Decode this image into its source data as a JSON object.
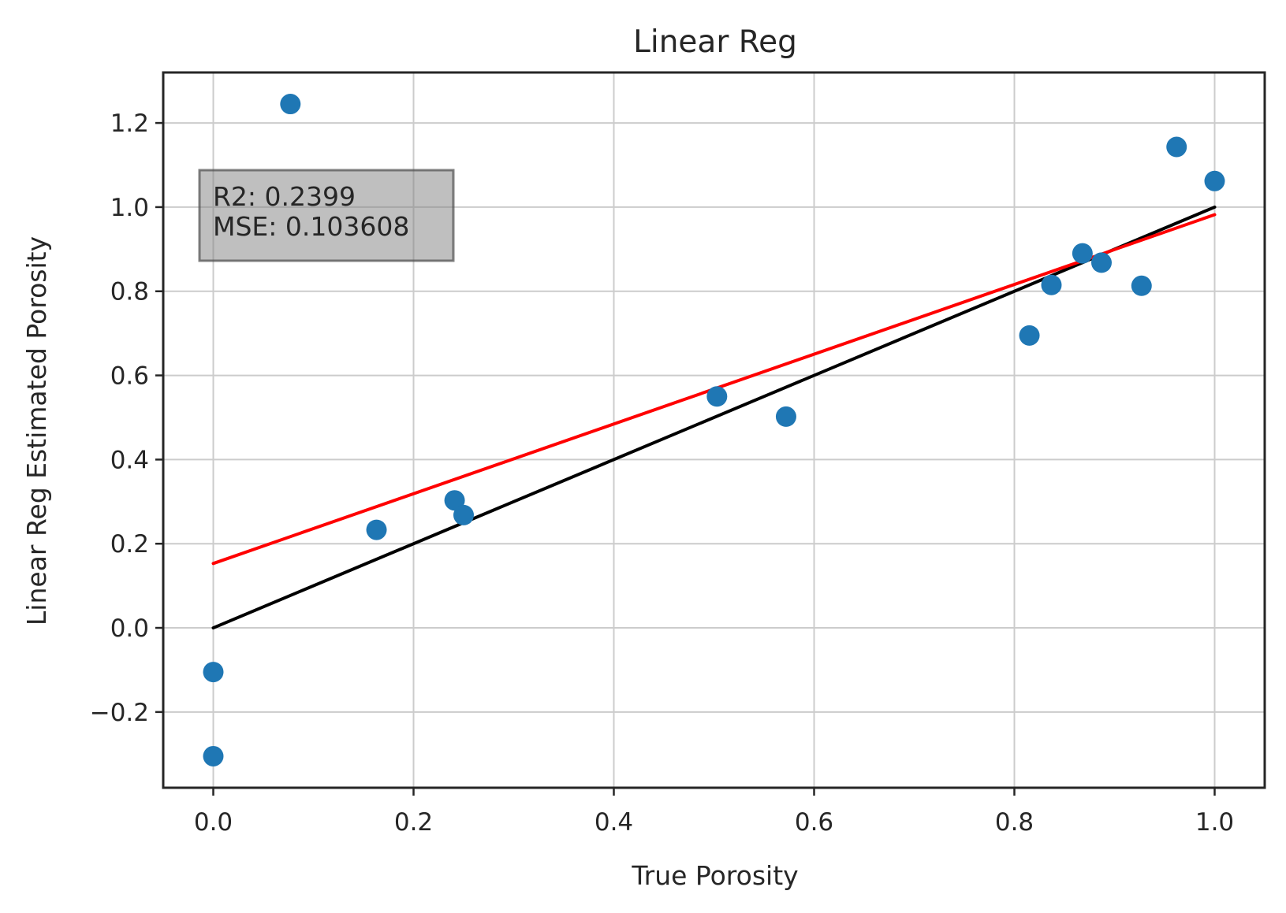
{
  "chart_data": {
    "type": "scatter",
    "title": "Linear Reg",
    "xlabel": "True Porosity",
    "ylabel": "Linear Reg Estimated Porosity",
    "xlim": [
      -0.05,
      1.05
    ],
    "ylim": [
      -0.38,
      1.32
    ],
    "xticks": [
      0.0,
      0.2,
      0.4,
      0.6,
      0.8,
      1.0
    ],
    "xtick_labels": [
      "0.0",
      "0.2",
      "0.4",
      "0.6",
      "0.8",
      "1.0"
    ],
    "yticks": [
      -0.2,
      0.0,
      0.2,
      0.4,
      0.6,
      0.8,
      1.0,
      1.2
    ],
    "ytick_labels": [
      "−0.2",
      "0.0",
      "0.2",
      "0.4",
      "0.6",
      "0.8",
      "1.0",
      "1.2"
    ],
    "grid": true,
    "points": {
      "color": "#1f77b4",
      "x": [
        0.0,
        0.0,
        0.077,
        0.163,
        0.241,
        0.25,
        0.503,
        0.572,
        0.815,
        0.837,
        0.868,
        0.887,
        0.927,
        0.962,
        1.0
      ],
      "y": [
        -0.105,
        -0.305,
        1.245,
        0.233,
        0.303,
        0.268,
        0.55,
        0.502,
        0.695,
        0.815,
        0.89,
        0.868,
        0.813,
        1.143,
        1.062
      ]
    },
    "lines": [
      {
        "color": "#000000",
        "x": [
          0.0,
          1.0
        ],
        "y": [
          0.0,
          1.0
        ]
      },
      {
        "color": "#ff0000",
        "x": [
          0.0,
          1.0
        ],
        "y": [
          0.153,
          0.982
        ]
      }
    ],
    "annotation": {
      "lines": [
        "R2: 0.2399",
        "MSE: 0.103608"
      ],
      "placement": "top-left"
    }
  }
}
